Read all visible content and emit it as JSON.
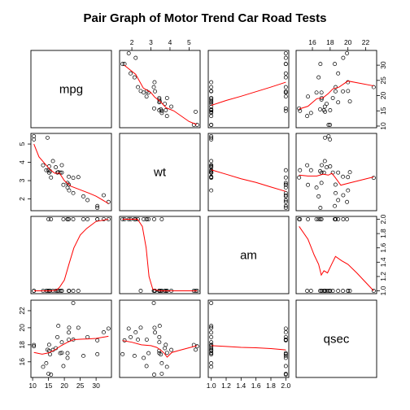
{
  "chart_data": {
    "type": "scatter",
    "title": "Pair Graph of Motor Trend Car Road Tests",
    "variables": [
      "mpg",
      "wt",
      "am",
      "qsec"
    ],
    "ranges": {
      "mpg": [
        10.4,
        33.9
      ],
      "wt": [
        1.513,
        5.424
      ],
      "am": [
        1,
        2
      ],
      "qsec": [
        14.5,
        22.9
      ]
    },
    "ticks": {
      "mpg": [
        10,
        15,
        20,
        25,
        30
      ],
      "wt": [
        2,
        3,
        4,
        5
      ],
      "am": [
        1.0,
        1.2,
        1.4,
        1.6,
        1.8,
        2.0
      ],
      "qsec": [
        16,
        18,
        20,
        22
      ]
    },
    "observations": {
      "mpg": [
        21.0,
        21.0,
        22.8,
        21.4,
        18.7,
        18.1,
        14.3,
        24.4,
        22.8,
        19.2,
        17.8,
        16.4,
        17.3,
        15.2,
        10.4,
        10.4,
        14.7,
        32.4,
        30.4,
        33.9,
        21.5,
        15.5,
        15.2,
        13.3,
        19.2,
        27.3,
        26.0,
        30.4,
        15.8,
        19.7,
        15.0,
        21.4
      ],
      "wt": [
        2.62,
        2.875,
        2.32,
        3.215,
        3.44,
        3.46,
        3.57,
        3.19,
        3.15,
        3.44,
        3.44,
        4.07,
        3.73,
        3.78,
        5.25,
        5.424,
        5.345,
        2.2,
        1.615,
        1.835,
        2.465,
        3.52,
        3.435,
        3.84,
        3.845,
        1.935,
        2.14,
        1.513,
        3.17,
        2.77,
        3.57,
        2.78
      ],
      "am": [
        2,
        2,
        2,
        1,
        1,
        1,
        1,
        1,
        1,
        1,
        1,
        1,
        1,
        1,
        1,
        1,
        1,
        2,
        2,
        2,
        1,
        1,
        1,
        1,
        1,
        2,
        2,
        2,
        2,
        2,
        2,
        2
      ],
      "qsec": [
        16.46,
        17.02,
        18.61,
        19.44,
        17.02,
        20.22,
        15.84,
        20.0,
        22.9,
        18.3,
        18.9,
        17.4,
        17.6,
        18.0,
        17.98,
        17.82,
        17.42,
        19.47,
        18.52,
        19.9,
        20.01,
        16.87,
        17.3,
        15.41,
        17.05,
        18.9,
        16.7,
        16.9,
        14.5,
        15.5,
        14.6,
        18.6
      ]
    },
    "smoothers": {
      "mpg|wt": [
        [
          1.6,
          30
        ],
        [
          2.2,
          27
        ],
        [
          2.6,
          22.5
        ],
        [
          3.0,
          21
        ],
        [
          3.2,
          19.5
        ],
        [
          3.5,
          18
        ],
        [
          3.8,
          16
        ],
        [
          4.2,
          15
        ],
        [
          5.0,
          11.5
        ],
        [
          5.4,
          10.5
        ]
      ],
      "mpg|am": [
        [
          1,
          16.8
        ],
        [
          1.2,
          18.4
        ],
        [
          1.4,
          19.8
        ],
        [
          1.6,
          21.3
        ],
        [
          1.8,
          22.8
        ],
        [
          2,
          24.4
        ]
      ],
      "mpg|qsec": [
        [
          14.5,
          15.6
        ],
        [
          15.5,
          16.5
        ],
        [
          16.5,
          19
        ],
        [
          17.2,
          19.3
        ],
        [
          17.8,
          20.7
        ],
        [
          18.3,
          22.2
        ],
        [
          19,
          22.8
        ],
        [
          20,
          24.8
        ],
        [
          22.9,
          23.2
        ]
      ],
      "wt|mpg": [
        [
          10.4,
          5.0
        ],
        [
          12,
          4.3
        ],
        [
          14,
          3.9
        ],
        [
          15.5,
          3.6
        ],
        [
          17,
          3.4
        ],
        [
          18.5,
          3.4
        ],
        [
          20,
          3.0
        ],
        [
          22,
          2.7
        ],
        [
          25,
          2.5
        ],
        [
          28,
          2.3
        ],
        [
          30,
          2.15
        ],
        [
          33.9,
          1.75
        ]
      ],
      "wt|am": [
        [
          1,
          3.59
        ],
        [
          1.2,
          3.35
        ],
        [
          1.4,
          3.1
        ],
        [
          1.6,
          2.9
        ],
        [
          1.8,
          2.65
        ],
        [
          2,
          2.41
        ]
      ],
      "wt|qsec": [
        [
          14.5,
          3.3
        ],
        [
          15.5,
          3.25
        ],
        [
          16.5,
          3.25
        ],
        [
          17.2,
          3.35
        ],
        [
          17.8,
          3.3
        ],
        [
          18.2,
          3.4
        ],
        [
          18.6,
          3.15
        ],
        [
          19.2,
          2.75
        ],
        [
          20,
          2.85
        ],
        [
          22.9,
          3.2
        ]
      ],
      "am|mpg": [
        [
          10.4,
          1
        ],
        [
          14,
          1
        ],
        [
          16,
          1
        ],
        [
          17.5,
          1.01
        ],
        [
          18.5,
          1.05
        ],
        [
          20,
          1.15
        ],
        [
          21.5,
          1.38
        ],
        [
          23,
          1.6
        ],
        [
          25,
          1.78
        ],
        [
          27,
          1.87
        ],
        [
          30,
          1.97
        ],
        [
          33.9,
          2.0
        ]
      ],
      "am|wt": [
        [
          1.513,
          2.0
        ],
        [
          2.3,
          2.0
        ],
        [
          2.55,
          1.9
        ],
        [
          2.75,
          1.6
        ],
        [
          2.9,
          1.2
        ],
        [
          3.1,
          1.02
        ],
        [
          3.5,
          1
        ],
        [
          4.5,
          1
        ],
        [
          5.424,
          1
        ]
      ],
      "am|qsec": [
        [
          14.5,
          1.9
        ],
        [
          15.5,
          1.72
        ],
        [
          16.2,
          1.5
        ],
        [
          16.7,
          1.37
        ],
        [
          17.0,
          1.22
        ],
        [
          17.3,
          1.28
        ],
        [
          17.7,
          1.25
        ],
        [
          18.2,
          1.38
        ],
        [
          18.6,
          1.48
        ],
        [
          19.3,
          1.42
        ],
        [
          20,
          1.37
        ],
        [
          21,
          1.25
        ],
        [
          22.9,
          1.0
        ]
      ],
      "qsec|mpg": [
        [
          10.4,
          17.1
        ],
        [
          13,
          16.9
        ],
        [
          15,
          17.05
        ],
        [
          17,
          17.4
        ],
        [
          19,
          17.9
        ],
        [
          21,
          18.3
        ],
        [
          23,
          18.6
        ],
        [
          25,
          18.65
        ],
        [
          28,
          18.7
        ],
        [
          30,
          18.75
        ],
        [
          33.9,
          19.0
        ]
      ],
      "qsec|wt": [
        [
          1.513,
          18.5
        ],
        [
          2.0,
          18.3
        ],
        [
          2.5,
          18.0
        ],
        [
          3.0,
          17.9
        ],
        [
          3.3,
          17.7
        ],
        [
          3.5,
          17.4
        ],
        [
          3.7,
          17.0
        ],
        [
          3.85,
          16.55
        ],
        [
          4.1,
          17.1
        ],
        [
          4.5,
          17.35
        ],
        [
          5.0,
          17.65
        ],
        [
          5.424,
          17.9
        ]
      ],
      "qsec|am": [
        [
          1,
          17.9
        ],
        [
          1.2,
          17.8
        ],
        [
          1.4,
          17.7
        ],
        [
          1.6,
          17.65
        ],
        [
          1.8,
          17.55
        ],
        [
          2,
          17.4
        ]
      ]
    }
  }
}
